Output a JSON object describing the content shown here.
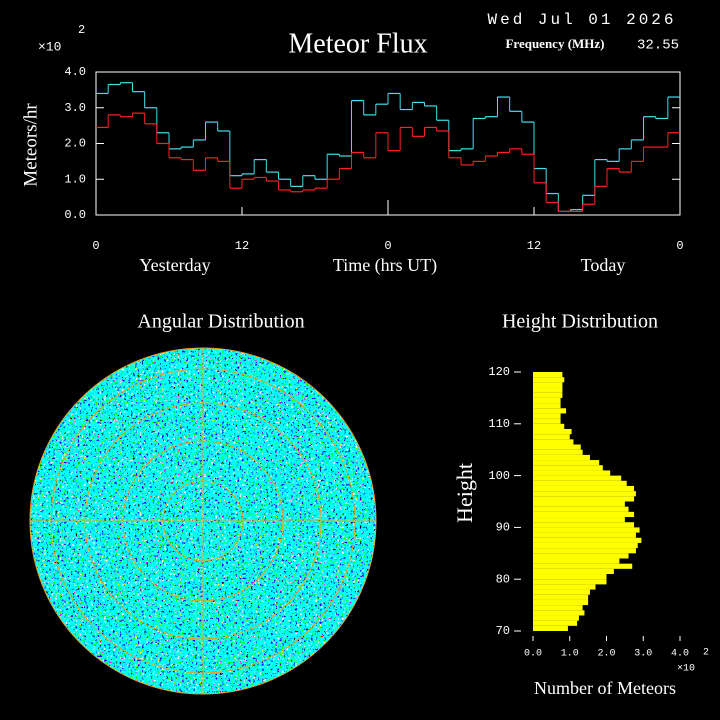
{
  "chart_data": [
    {
      "type": "step",
      "title": "Meteor Flux",
      "date": "Wed Jul 01 2026",
      "frequency_label": "Frequency (MHz)",
      "frequency": "32.55",
      "ylabel": "Meteors/hr",
      "y_multiplier": "×10",
      "y_multiplier_exp": "2",
      "xlabels": [
        "Yesterday",
        "Time (hrs UT)",
        "Today"
      ],
      "x": [
        0,
        1,
        2,
        3,
        4,
        5,
        6,
        7,
        8,
        9,
        10,
        11,
        12,
        13,
        14,
        15,
        16,
        17,
        18,
        19,
        20,
        21,
        22,
        23,
        24,
        25,
        26,
        27,
        28,
        29,
        30,
        31,
        32,
        33,
        34,
        35,
        36,
        37,
        38,
        39,
        40,
        41,
        42,
        43,
        44,
        45,
        46,
        47
      ],
      "xlim": [
        0,
        48
      ],
      "xticks": [
        0,
        12,
        {
          "value": 24,
          "label": "0"
        },
        {
          "value": 36,
          "label": "12"
        },
        {
          "value": 48,
          "label": "0"
        }
      ],
      "ylim": [
        0,
        4
      ],
      "yticks": [
        {
          "value": 0,
          "label": "0.0"
        },
        {
          "value": 1,
          "label": "1.0"
        },
        {
          "value": 2,
          "label": "2.0"
        },
        {
          "value": 3,
          "label": "3.0"
        },
        {
          "value": 4,
          "label": "4.0"
        }
      ],
      "series": [
        {
          "color": "#40e0f0",
          "values": [
            3.4,
            3.65,
            3.7,
            3.45,
            3.0,
            2.3,
            1.85,
            1.9,
            2.1,
            2.6,
            2.35,
            1.1,
            1.15,
            1.55,
            1.2,
            1.0,
            0.8,
            1.1,
            1.0,
            1.7,
            1.65,
            3.2,
            2.8,
            3.1,
            3.4,
            2.95,
            3.15,
            3.05,
            2.65,
            1.8,
            1.85,
            2.7,
            2.75,
            3.3,
            2.9,
            2.6,
            1.3,
            0.6,
            0.1,
            0.15,
            0.55,
            1.55,
            1.5,
            1.85,
            2.1,
            2.75,
            2.7,
            3.3
          ]
        },
        {
          "color": "#ff2020",
          "values": [
            2.45,
            2.8,
            2.75,
            2.85,
            2.55,
            2.0,
            1.6,
            1.55,
            1.25,
            1.6,
            1.5,
            0.75,
            1.0,
            1.05,
            0.95,
            0.7,
            0.65,
            0.7,
            0.75,
            1.0,
            1.3,
            1.75,
            1.6,
            2.3,
            1.8,
            2.45,
            2.2,
            2.45,
            2.35,
            1.6,
            1.4,
            1.5,
            1.65,
            1.75,
            1.85,
            1.7,
            0.9,
            0.35,
            0.1,
            0.1,
            0.3,
            0.8,
            1.3,
            1.2,
            1.5,
            1.9,
            1.9,
            2.3
          ]
        }
      ]
    },
    {
      "type": "polar",
      "title": "Angular Distribution"
    },
    {
      "type": "histogram",
      "orientation": "horizontal",
      "title": "Height Distribution",
      "color": "#ffff00",
      "xlabel": "Number of Meteors",
      "ylabel": "Height",
      "x_multiplier": "×10",
      "x_multiplier_exp": "2",
      "bins": [
        70,
        71,
        72,
        73,
        74,
        75,
        76,
        77,
        78,
        79,
        80,
        81,
        82,
        83,
        84,
        85,
        86,
        87,
        88,
        89,
        90,
        91,
        92,
        93,
        94,
        95,
        96,
        97,
        98,
        99,
        100,
        101,
        102,
        103,
        104,
        105,
        106,
        107,
        108,
        109,
        110,
        111,
        112,
        113,
        114,
        115,
        116,
        117,
        118,
        119,
        120
      ],
      "values": [
        0.95,
        1.2,
        1.25,
        1.4,
        1.35,
        1.5,
        1.5,
        1.55,
        1.7,
        2.0,
        2.0,
        2.2,
        2.7,
        2.35,
        2.6,
        2.8,
        2.85,
        2.95,
        2.8,
        2.9,
        2.75,
        2.5,
        2.75,
        2.6,
        2.5,
        2.75,
        2.8,
        2.75,
        2.55,
        2.4,
        2.1,
        1.9,
        1.8,
        1.55,
        1.35,
        1.3,
        1.1,
        1.0,
        1.05,
        0.85,
        0.75,
        0.75,
        0.9,
        0.75,
        0.75,
        0.8,
        0.8,
        0.8,
        0.85,
        0.8
      ],
      "xlim": [
        0,
        4
      ],
      "xticks": [
        {
          "value": 0,
          "label": "0.0"
        },
        {
          "value": 1,
          "label": "1.0"
        },
        {
          "value": 2,
          "label": "2.0"
        },
        {
          "value": 3,
          "label": "3.0"
        },
        {
          "value": 4,
          "label": "4.0"
        }
      ],
      "ylim": [
        70,
        120
      ],
      "yticks": [
        70,
        80,
        90,
        100,
        110,
        120
      ]
    }
  ]
}
